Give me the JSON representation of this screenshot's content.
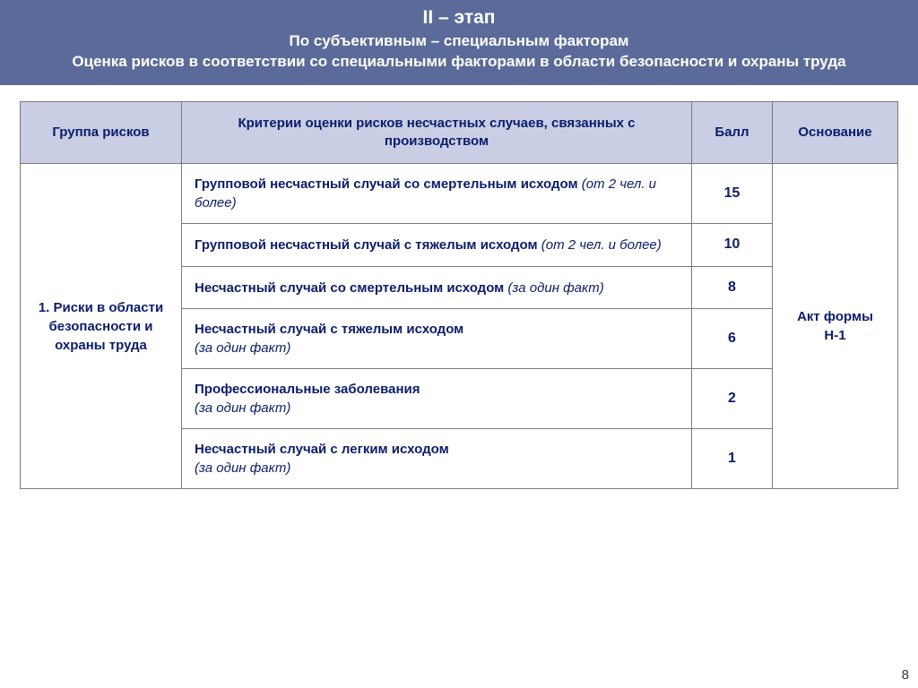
{
  "header": {
    "title": "II – этап",
    "subtitle1": "По субъективным – специальным факторам",
    "subtitle2": "Оценка рисков в соответствии со специальными факторами в области безопасности и охраны труда"
  },
  "table": {
    "columns": {
      "group": "Группа рисков",
      "criteria": "Критерии оценки рисков несчастных случаев, связанных с производством",
      "score": "Балл",
      "basis": "Основание"
    },
    "group_label": "1. Риски в области безопасности и охраны труда",
    "basis_label": "Акт формы Н-1",
    "rows": [
      {
        "bold": "Групповой несчастный случай со смертельным исходом",
        "ital": " (от 2 чел. и более)",
        "score": "15"
      },
      {
        "bold": "Групповой несчастный случай с тяжелым исходом",
        "ital": " (от 2 чел. и более)",
        "score": "10"
      },
      {
        "bold": "Несчастный случай со смертельным исходом",
        "ital": " (за один факт)",
        "score": "8"
      },
      {
        "bold": "Несчастный случай с тяжелым исходом",
        "ital": "(за один факт)",
        "score": "6",
        "ital_on_newline": true
      },
      {
        "bold": "Профессиональные заболевания",
        "ital": "(за один факт)",
        "score": "2",
        "ital_on_newline": true
      },
      {
        "bold": "Несчастный случай с легким исходом",
        "ital": "(за один факт)",
        "score": "1",
        "ital_on_newline": true
      }
    ]
  },
  "page_number": "8",
  "colors": {
    "header_bg": "#5b6b99",
    "header_text": "#ffffff",
    "th_bg": "#c9cee4",
    "text": "#0c1c6b",
    "border": "#7a7a7a"
  }
}
